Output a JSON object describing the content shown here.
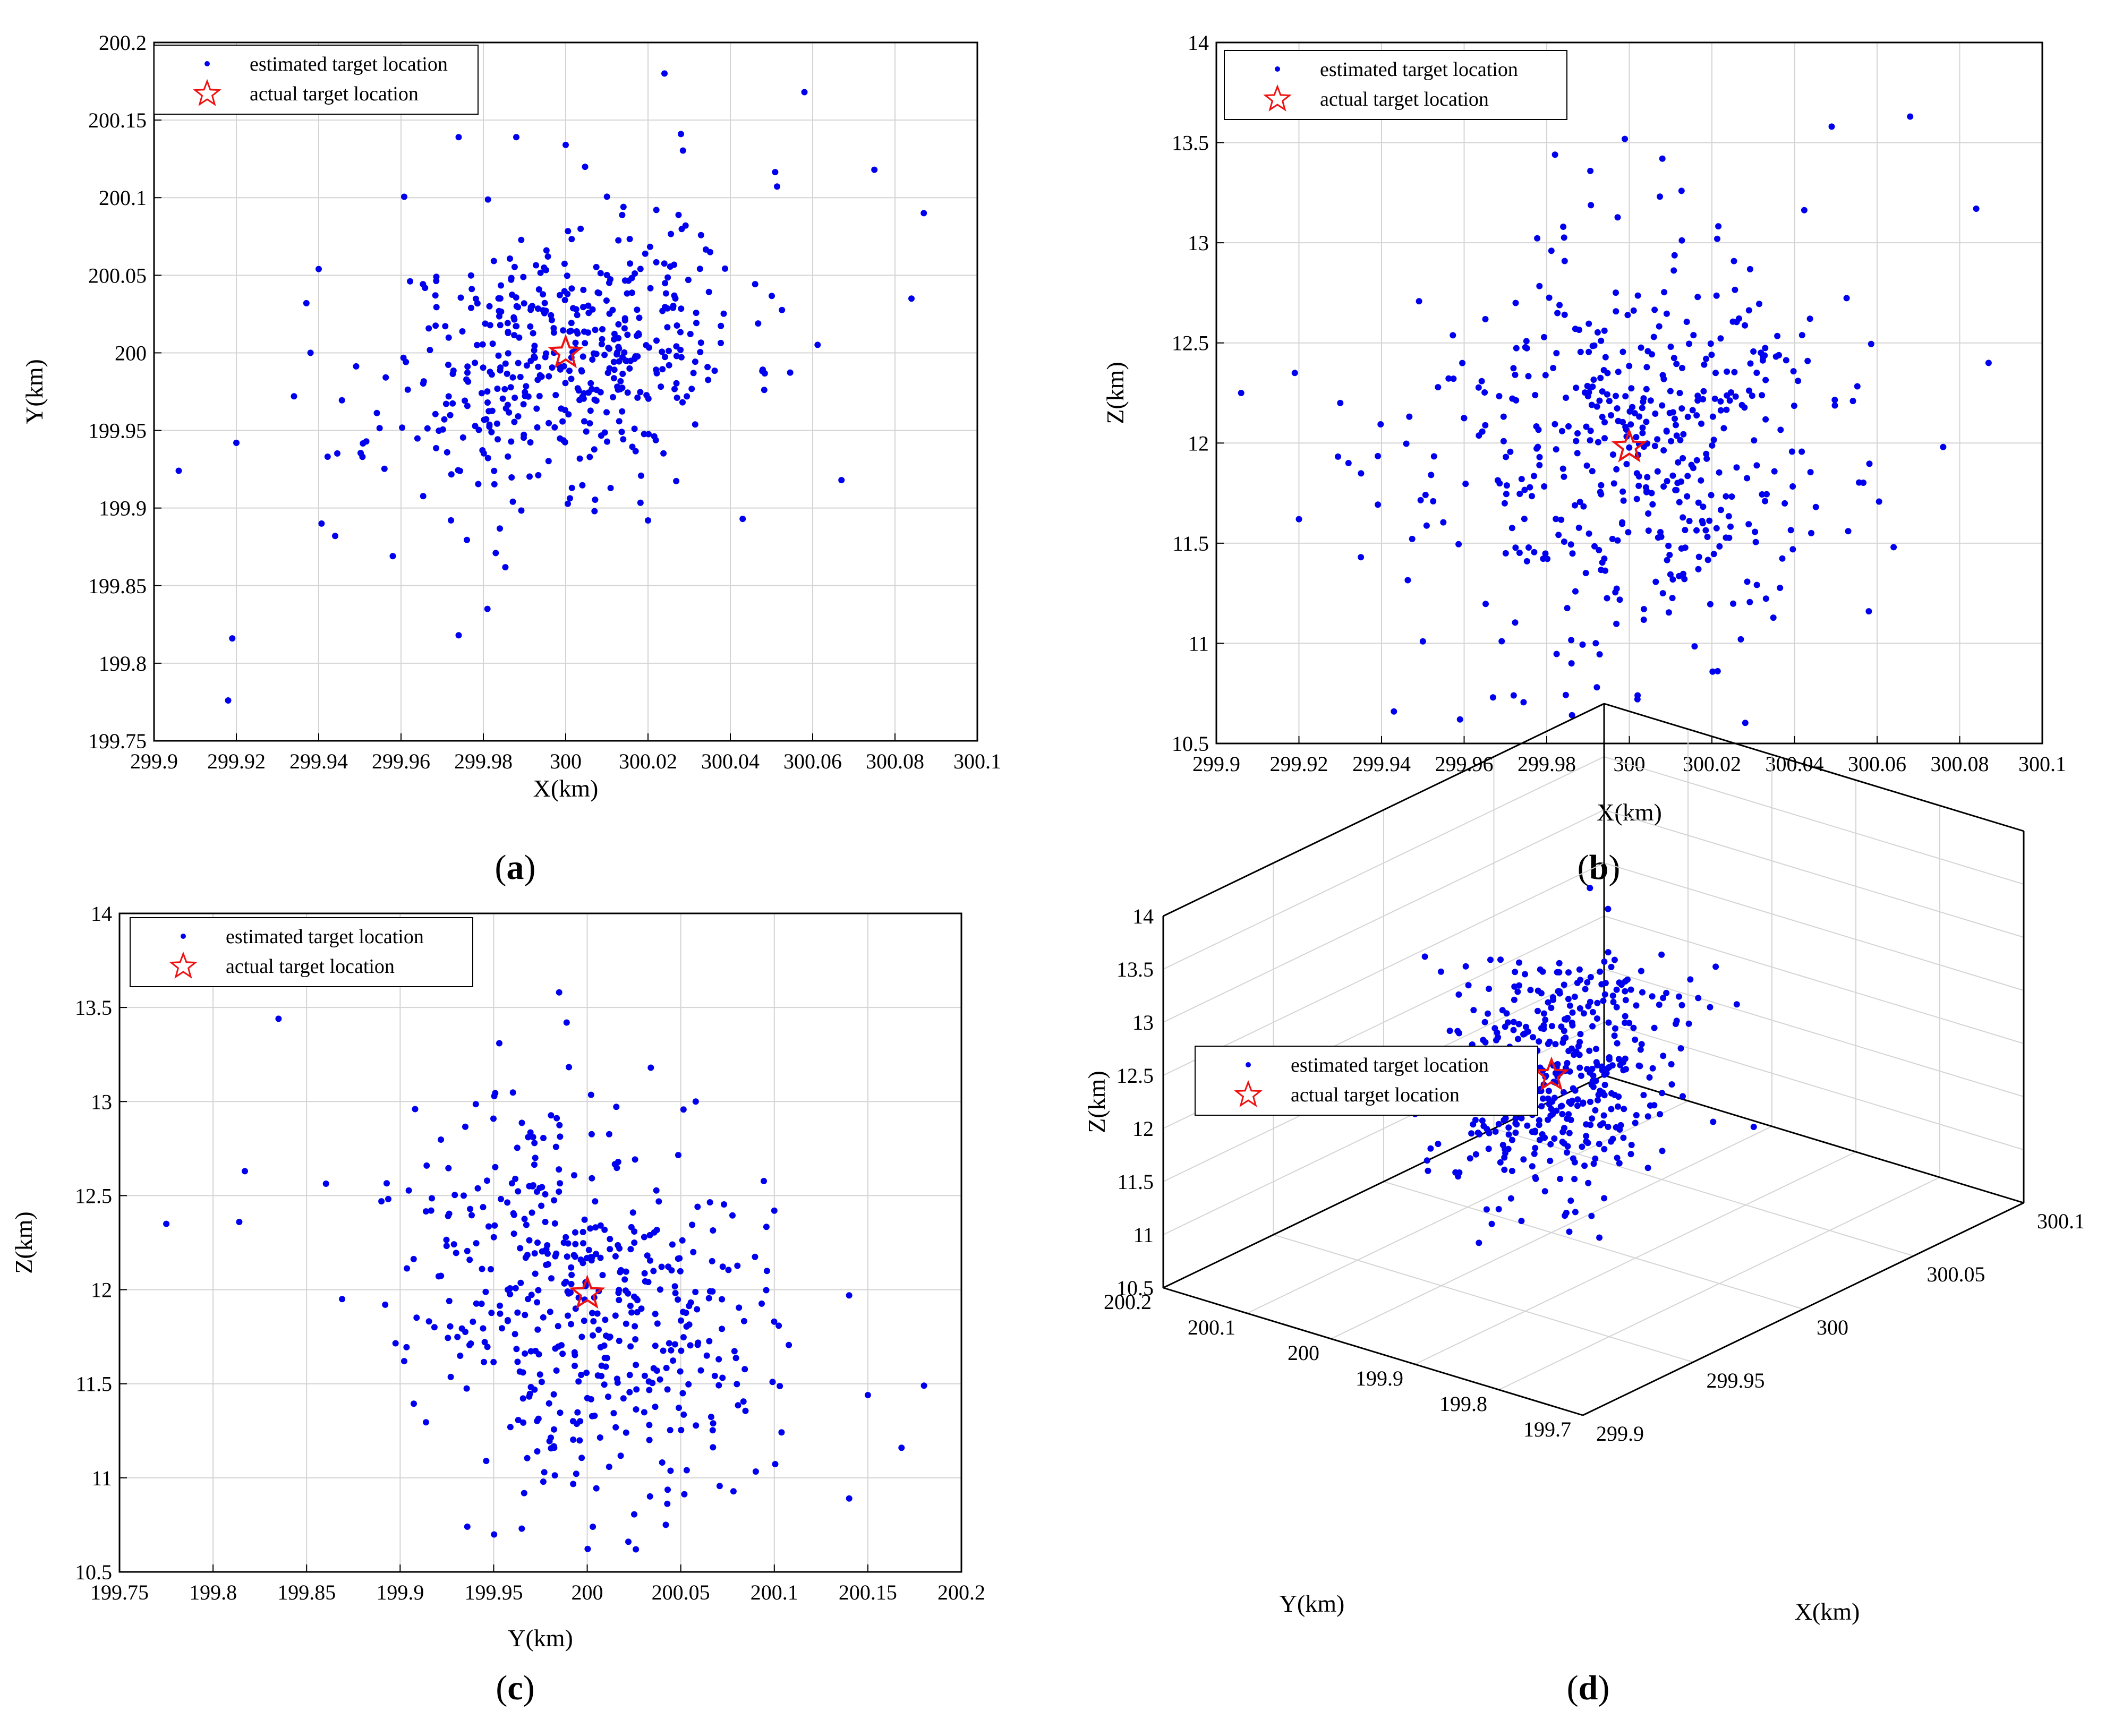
{
  "figure": {
    "legend": {
      "estimated": "estimated target location",
      "actual": "actual target location"
    },
    "colors": {
      "points": "#0000ee",
      "star": "#ee1111",
      "grid": "#d4d4d4",
      "axis": "#000000"
    }
  },
  "chart_data": [
    {
      "id": "a",
      "type": "scatter",
      "caption": "a",
      "xlabel": "X(km)",
      "ylabel": "Y(km)",
      "xlim": [
        299.9,
        300.1
      ],
      "ylim": [
        199.75,
        200.2
      ],
      "xticks": [
        "299.9",
        "299.92",
        "299.94",
        "299.96",
        "299.98",
        "300",
        "300.02",
        "300.04",
        "300.06",
        "300.08",
        "300.1"
      ],
      "yticks": [
        "199.75",
        "199.8",
        "199.85",
        "199.9",
        "199.95",
        "200",
        "200.05",
        "200.1",
        "200.15",
        "200.2"
      ],
      "grid": true,
      "legend_position": "top-left",
      "series": [
        {
          "name": "estimated target location",
          "sample_points": [
            [
              299.906,
              199.924
            ],
            [
              299.918,
              199.776
            ],
            [
              299.919,
              199.816
            ],
            [
              299.92,
              199.942
            ],
            [
              299.934,
              199.972
            ],
            [
              299.937,
              200.032
            ],
            [
              299.94,
              200.054
            ],
            [
              299.944,
              199.882
            ],
            [
              299.958,
              199.869
            ],
            [
              299.974,
              200.139
            ],
            [
              299.974,
              199.818
            ],
            [
              299.981,
              199.835
            ],
            [
              299.988,
              200.139
            ],
            [
              300.0,
              200.134
            ],
            [
              300.024,
              200.18
            ],
            [
              300.028,
              200.141
            ],
            [
              300.058,
              200.168
            ],
            [
              300.075,
              200.118
            ],
            [
              300.084,
              200.035
            ],
            [
              300.087,
              200.09
            ],
            [
              300.067,
              199.918
            ],
            [
              300.043,
              199.893
            ],
            [
              300.02,
              199.892
            ],
            [
              300.007,
              199.898
            ],
            [
              299.983,
              199.871
            ]
          ],
          "generated_cloud": {
            "count": 460,
            "center": [
              300.0,
              200.0
            ],
            "sd": [
              0.022,
              0.045
            ],
            "correlation": 0.3
          }
        },
        {
          "name": "actual target location",
          "points": [
            [
              300.0,
              200.0
            ]
          ]
        }
      ]
    },
    {
      "id": "b",
      "type": "scatter",
      "caption": "b",
      "xlabel": "X(km)",
      "ylabel": "Z(km)",
      "xlim": [
        299.9,
        300.1
      ],
      "ylim": [
        10.5,
        14
      ],
      "xticks": [
        "299.9",
        "299.92",
        "299.94",
        "299.96",
        "299.98",
        "300",
        "300.02",
        "300.04",
        "300.06",
        "300.08",
        "300.1"
      ],
      "yticks": [
        "10.5",
        "11",
        "11.5",
        "12",
        "12.5",
        "13",
        "13.5",
        "14"
      ],
      "grid": true,
      "legend_position": "top-left",
      "series": [
        {
          "name": "estimated target location",
          "sample_points": [
            [
              299.906,
              12.25
            ],
            [
              299.92,
              11.62
            ],
            [
              299.919,
              12.35
            ],
            [
              299.943,
              10.66
            ],
            [
              299.959,
              10.62
            ],
            [
              299.982,
              13.44
            ],
            [
              299.984,
              13.08
            ],
            [
              300.008,
              13.42
            ],
            [
              300.049,
              13.58
            ],
            [
              300.068,
              13.63
            ],
            [
              300.084,
              13.17
            ],
            [
              300.087,
              12.4
            ],
            [
              300.076,
              11.98
            ],
            [
              300.058,
              11.16
            ],
            [
              300.027,
              11.02
            ],
            [
              300.002,
              10.74
            ],
            [
              299.986,
              10.9
            ],
            [
              299.972,
              10.74
            ],
            [
              299.967,
              10.73
            ],
            [
              299.95,
              11.01
            ],
            [
              299.935,
              11.43
            ],
            [
              299.932,
              11.9
            ],
            [
              299.93,
              12.2
            ],
            [
              300.053,
              11.56
            ],
            [
              300.064,
              11.48
            ]
          ],
          "generated_cloud": {
            "count": 460,
            "center": [
              300.0,
              11.98
            ],
            "sd": [
              0.024,
              0.5
            ],
            "correlation": 0.0
          }
        },
        {
          "name": "actual target location",
          "points": [
            [
              300.0,
              11.98
            ]
          ]
        }
      ]
    },
    {
      "id": "c",
      "type": "scatter",
      "caption": "c",
      "xlabel": "Y(km)",
      "ylabel": "Z(km)",
      "xlim": [
        199.75,
        200.2
      ],
      "ylim": [
        10.5,
        14
      ],
      "xticks": [
        "199.75",
        "199.8",
        "199.85",
        "199.9",
        "199.95",
        "200",
        "200.05",
        "200.1",
        "200.15",
        "200.2"
      ],
      "yticks": [
        "10.5",
        "11",
        "11.5",
        "12",
        "12.5",
        "13",
        "13.5",
        "14"
      ],
      "grid": true,
      "legend_position": "top-left",
      "series": [
        {
          "name": "estimated target location",
          "sample_points": [
            [
              199.775,
              12.35
            ],
            [
              199.814,
              12.36
            ],
            [
              199.817,
              12.63
            ],
            [
              199.835,
              13.44
            ],
            [
              199.869,
              11.95
            ],
            [
              199.985,
              13.58
            ],
            [
              199.989,
              13.42
            ],
            [
              199.953,
              13.31
            ],
            [
              200.034,
              13.18
            ],
            [
              200.058,
              13.0
            ],
            [
              200.1,
              12.42
            ],
            [
              200.14,
              11.97
            ],
            [
              200.15,
              11.44
            ],
            [
              200.168,
              11.16
            ],
            [
              200.18,
              11.49
            ],
            [
              200.14,
              10.89
            ],
            [
              200.022,
              10.66
            ],
            [
              200.026,
              10.62
            ],
            [
              199.965,
              10.73
            ],
            [
              200.003,
              10.74
            ],
            [
              199.892,
              11.92
            ],
            [
              199.946,
              11.09
            ],
            [
              199.908,
              12.96
            ],
            [
              199.89,
              12.47
            ],
            [
              200.042,
              10.75
            ]
          ],
          "generated_cloud": {
            "count": 460,
            "center": [
              200.0,
              11.98
            ],
            "sd": [
              0.045,
              0.5
            ],
            "correlation": -0.25
          }
        },
        {
          "name": "actual target location",
          "points": [
            [
              200.0,
              11.98
            ]
          ]
        }
      ]
    },
    {
      "id": "d",
      "type": "scatter3d",
      "caption": "d",
      "xlabel": "X(km)",
      "ylabel": "Y(km)",
      "zlabel": "Z(km)",
      "xlim": [
        299.9,
        300.1
      ],
      "ylim": [
        199.7,
        200.2
      ],
      "zlim": [
        10.5,
        14
      ],
      "xticks": [
        "299.9",
        "299.95",
        "300",
        "300.05",
        "300.1"
      ],
      "yticks": [
        "199.7",
        "199.8",
        "199.9",
        "200",
        "200.1",
        "200.2"
      ],
      "zticks": [
        "10.5",
        "11",
        "11.5",
        "12",
        "12.5",
        "13",
        "13.5",
        "14"
      ],
      "grid": true,
      "legend_position": "top-left",
      "series": [
        {
          "name": "estimated target location",
          "generated_cloud": {
            "count": 460,
            "center": [
              300.0,
              200.0,
              11.98
            ],
            "sd": [
              0.022,
              0.045,
              0.5
            ]
          }
        },
        {
          "name": "actual target location",
          "points": [
            [
              300.0,
              200.0,
              11.98
            ]
          ]
        }
      ]
    }
  ]
}
